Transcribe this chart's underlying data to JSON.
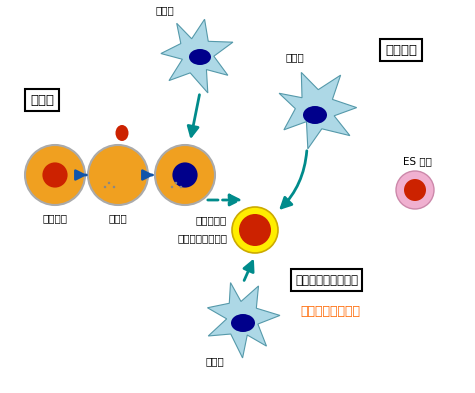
{
  "bg_color": "#ffffff",
  "teal": "#008b8b",
  "cell_color": "#add8e6",
  "nucleus_dark": "#00008b",
  "nucleus_red": "#cc2200",
  "egg_fill": "#f0a020",
  "es_cell_fill": "#f0b0d0",
  "stem_yellow": "#ffee00",
  "stem_red": "#cc2200",
  "labels": {
    "kakuishoku": "核移植",
    "saiboyugo": "細胞融合",
    "taisaibo_top": "体細胞",
    "taisaibo_right": "体細胞",
    "taisaibo_bottom": "体細胞",
    "mijukuseiran": "未受精卵",
    "kakujokyo": "核除去",
    "bannousaibo": "万能幹細胞",
    "tanoseisakibo": "（多能性幹細胞）",
    "es_saibo": "ES 細胞",
    "tokutei": "特定因子による誘導",
    "konnkainokenkyu": "今回の研究成果！"
  }
}
